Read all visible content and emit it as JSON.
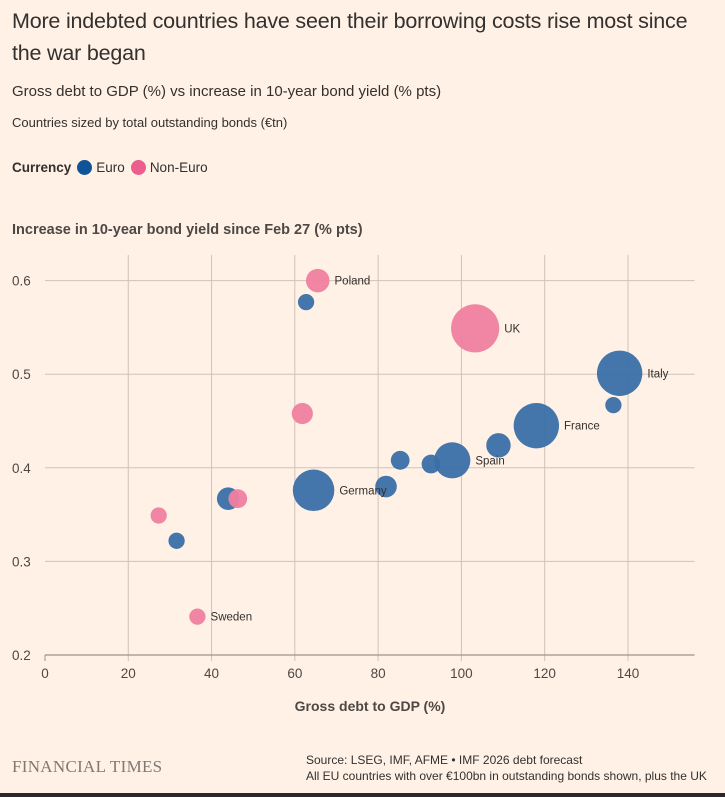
{
  "header": {
    "title": "More indebted countries have seen their borrowing costs rise most since the war began",
    "subtitle": "Gross debt to GDP (%) vs increase in 10-year bond yield (% pts)",
    "note": "Countries sized by total outstanding bonds (€tn)"
  },
  "legend": {
    "label": "Currency",
    "items": [
      {
        "name": "Euro",
        "color": "#0f5499"
      },
      {
        "name": "Non-Euro",
        "color": "#eb5e8d"
      }
    ]
  },
  "footer": {
    "brand": "FINANCIAL TIMES",
    "source": "Source: LSEG, IMF, AFME • IMF 2026 debt forecast",
    "note": "All EU countries with over €100bn in outstanding bonds shown, plus the UK"
  },
  "chart_data": {
    "type": "scatter",
    "title": "More indebted countries have seen their borrowing costs rise most since the war began",
    "xlabel": "Gross debt to GDP (%)",
    "ylabel": "Increase in 10-year bond yield since Feb 27 (% pts)",
    "xlim": [
      0,
      156
    ],
    "ylim": [
      0.2,
      0.63
    ],
    "xticks": [
      0,
      20,
      40,
      60,
      80,
      100,
      120,
      140
    ],
    "yticks": [
      0.2,
      0.3,
      0.4,
      0.5,
      0.6
    ],
    "ytick_labels": [
      "0.2",
      "0.3",
      "0.4",
      "0.5",
      "0.6"
    ],
    "grid": true,
    "size_meaning": "Total outstanding bonds (€tn), relative",
    "series": [
      {
        "name": "Euro",
        "color": "#3a6fa8",
        "points": [
          {
            "label": "Italy",
            "x": 138.0,
            "y": 0.501,
            "size": 2.5
          },
          {
            "label": "France",
            "x": 118.0,
            "y": 0.445,
            "size": 2.5
          },
          {
            "label": "Spain",
            "x": 97.8,
            "y": 0.408,
            "size": 1.4
          },
          {
            "label": "Germany",
            "x": 64.5,
            "y": 0.376,
            "size": 2.0
          },
          {
            "label": "",
            "x": 62.7,
            "y": 0.577,
            "size": 0.1
          },
          {
            "label": "",
            "x": 136.5,
            "y": 0.467,
            "size": 0.1
          },
          {
            "label": "",
            "x": 108.9,
            "y": 0.424,
            "size": 0.45
          },
          {
            "label": "",
            "x": 92.7,
            "y": 0.404,
            "size": 0.18
          },
          {
            "label": "",
            "x": 85.3,
            "y": 0.408,
            "size": 0.18
          },
          {
            "label": "",
            "x": 81.9,
            "y": 0.38,
            "size": 0.3
          },
          {
            "label": "",
            "x": 44.0,
            "y": 0.367,
            "size": 0.35
          },
          {
            "label": "",
            "x": 31.6,
            "y": 0.322,
            "size": 0.1
          }
        ]
      },
      {
        "name": "Non-Euro",
        "color": "#f07fa0",
        "points": [
          {
            "label": "Poland",
            "x": 65.5,
            "y": 0.6,
            "size": 0.4
          },
          {
            "label": "UK",
            "x": 103.3,
            "y": 0.549,
            "size": 2.9
          },
          {
            "label": "",
            "x": 61.8,
            "y": 0.458,
            "size": 0.28
          },
          {
            "label": "",
            "x": 46.3,
            "y": 0.367,
            "size": 0.18
          },
          {
            "label": "",
            "x": 27.3,
            "y": 0.349,
            "size": 0.1
          },
          {
            "label": "Sweden",
            "x": 36.6,
            "y": 0.241,
            "size": 0.1
          }
        ]
      }
    ]
  }
}
